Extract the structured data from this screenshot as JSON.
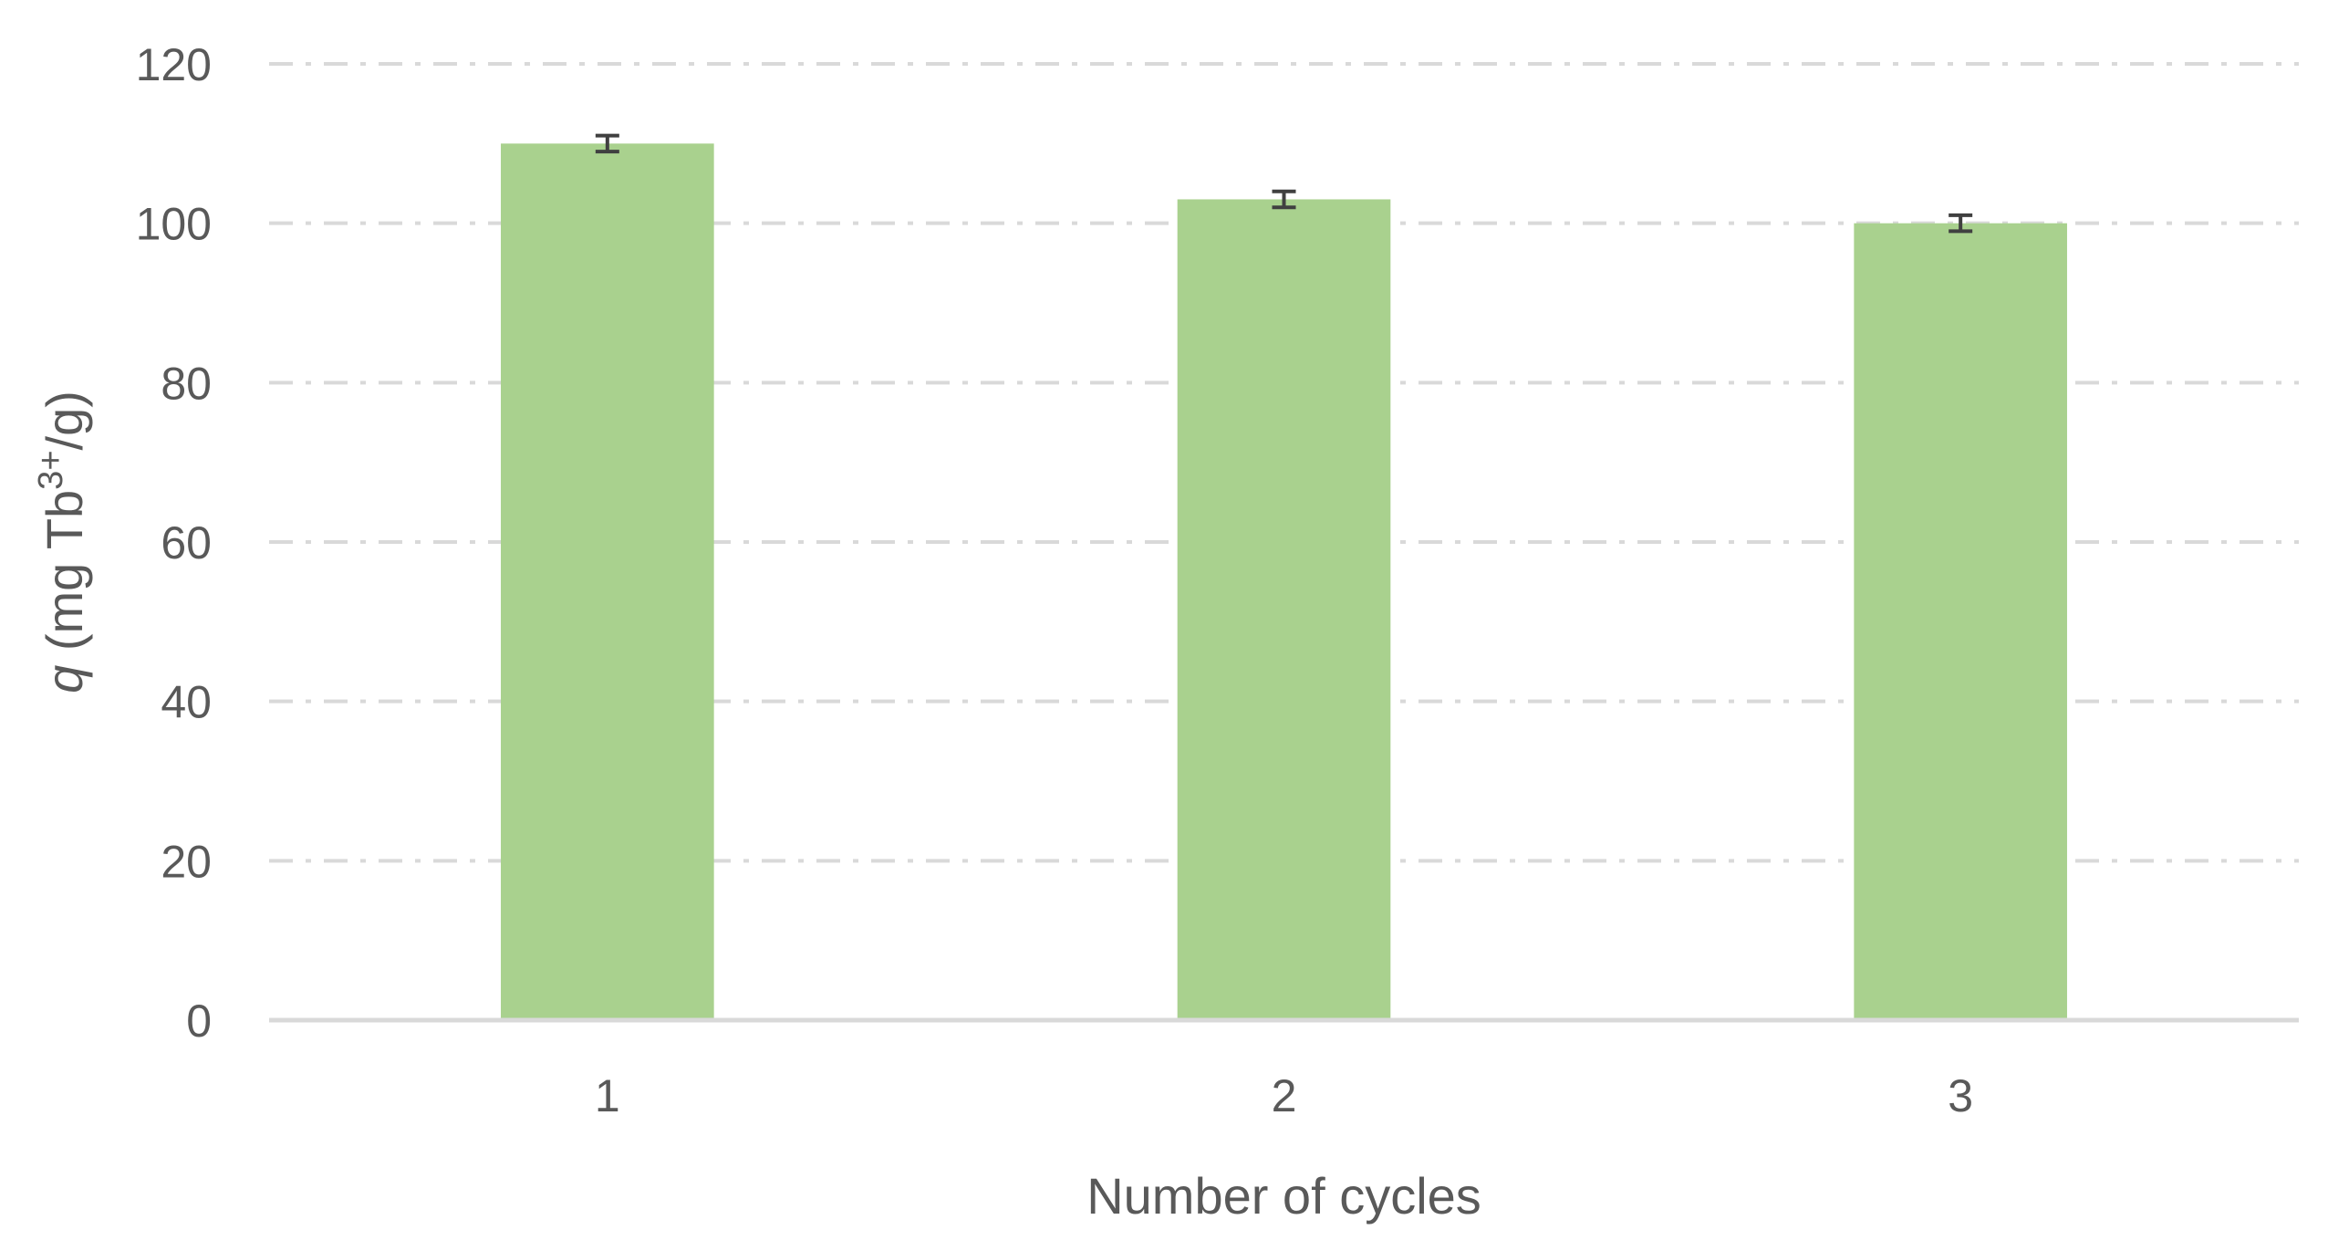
{
  "chart_data": {
    "type": "bar",
    "categories": [
      "1",
      "2",
      "3"
    ],
    "series": [
      {
        "values": [
          110,
          103,
          100
        ],
        "error": [
          1.0,
          1.0,
          1.0
        ],
        "color": "#a9d18e"
      }
    ],
    "xlabel": "Number of cycles",
    "ylabel_italic": "q",
    "ylabel_pre": "(mg Tb",
    "ylabel_sup": "3+",
    "ylabel_post": "/g)",
    "ylim": [
      0,
      120
    ],
    "yticks": [
      "0",
      "20",
      "40",
      "60",
      "80",
      "100",
      "120"
    ],
    "grid": true,
    "legend": "none",
    "colors": {
      "text": "#595959",
      "grid": "#d9d9d9",
      "error_bar": "#404040"
    }
  }
}
